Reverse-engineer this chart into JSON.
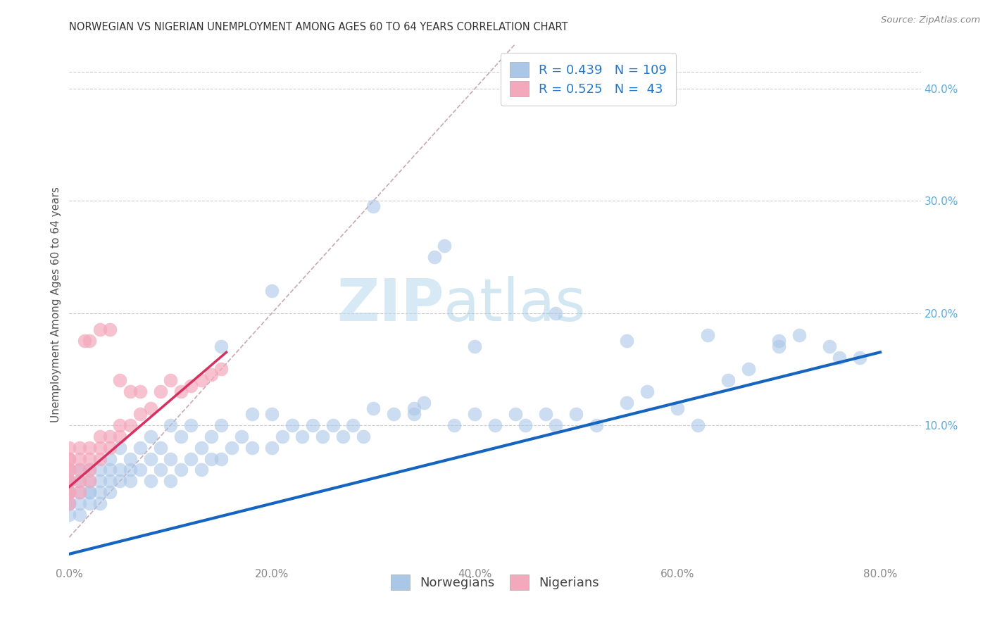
{
  "title": "NORWEGIAN VS NIGERIAN UNEMPLOYMENT AMONG AGES 60 TO 64 YEARS CORRELATION CHART",
  "source": "Source: ZipAtlas.com",
  "ylabel_label": "Unemployment Among Ages 60 to 64 years",
  "xlim": [
    0.0,
    0.84
  ],
  "ylim": [
    -0.025,
    0.44
  ],
  "watermark_zip": "ZIP",
  "watermark_atlas": "atlas",
  "legend_norwegian_R": "0.439",
  "legend_norwegian_N": "109",
  "legend_nigerian_R": "0.525",
  "legend_nigerian_N": " 43",
  "norwegian_color": "#aac7e8",
  "nigerian_color": "#f4a8bc",
  "norwegian_line_color": "#1565c0",
  "nigerian_line_color": "#d63060",
  "diagonal_color": "#c8a8b8",
  "ytick_color": "#5aabdd",
  "xtick_color": "#888888",
  "norwegian_scatter_x": [
    0.0,
    0.0,
    0.0,
    0.0,
    0.0,
    0.0,
    0.0,
    0.0,
    0.01,
    0.01,
    0.01,
    0.01,
    0.01,
    0.02,
    0.02,
    0.02,
    0.02,
    0.02,
    0.03,
    0.03,
    0.03,
    0.03,
    0.04,
    0.04,
    0.04,
    0.04,
    0.05,
    0.05,
    0.05,
    0.06,
    0.06,
    0.06,
    0.07,
    0.07,
    0.08,
    0.08,
    0.08,
    0.09,
    0.09,
    0.1,
    0.1,
    0.1,
    0.11,
    0.11,
    0.12,
    0.12,
    0.13,
    0.13,
    0.14,
    0.14,
    0.15,
    0.15,
    0.16,
    0.17,
    0.18,
    0.18,
    0.2,
    0.2,
    0.21,
    0.22,
    0.23,
    0.24,
    0.25,
    0.26,
    0.27,
    0.28,
    0.29,
    0.3,
    0.32,
    0.34,
    0.35,
    0.36,
    0.37,
    0.38,
    0.4,
    0.42,
    0.44,
    0.45,
    0.47,
    0.48,
    0.5,
    0.52,
    0.55,
    0.57,
    0.6,
    0.62,
    0.65,
    0.67,
    0.7,
    0.72,
    0.75,
    0.78,
    0.3,
    0.34,
    0.4,
    0.48,
    0.55,
    0.63,
    0.7,
    0.76,
    0.2,
    0.15
  ],
  "norwegian_scatter_y": [
    0.02,
    0.03,
    0.04,
    0.05,
    0.06,
    0.03,
    0.04,
    0.05,
    0.02,
    0.03,
    0.04,
    0.05,
    0.06,
    0.03,
    0.04,
    0.05,
    0.06,
    0.04,
    0.04,
    0.05,
    0.06,
    0.03,
    0.04,
    0.05,
    0.07,
    0.06,
    0.05,
    0.06,
    0.08,
    0.05,
    0.07,
    0.06,
    0.06,
    0.08,
    0.05,
    0.07,
    0.09,
    0.06,
    0.08,
    0.05,
    0.07,
    0.1,
    0.06,
    0.09,
    0.07,
    0.1,
    0.08,
    0.06,
    0.09,
    0.07,
    0.07,
    0.1,
    0.08,
    0.09,
    0.08,
    0.11,
    0.08,
    0.11,
    0.09,
    0.1,
    0.09,
    0.1,
    0.09,
    0.1,
    0.09,
    0.1,
    0.09,
    0.295,
    0.11,
    0.11,
    0.12,
    0.25,
    0.26,
    0.1,
    0.11,
    0.1,
    0.11,
    0.1,
    0.11,
    0.1,
    0.11,
    0.1,
    0.12,
    0.13,
    0.115,
    0.1,
    0.14,
    0.15,
    0.175,
    0.18,
    0.17,
    0.16,
    0.115,
    0.115,
    0.17,
    0.2,
    0.175,
    0.18,
    0.17,
    0.16,
    0.22,
    0.17
  ],
  "nigerian_scatter_x": [
    0.0,
    0.0,
    0.0,
    0.0,
    0.0,
    0.0,
    0.0,
    0.0,
    0.0,
    0.0,
    0.01,
    0.01,
    0.01,
    0.01,
    0.01,
    0.02,
    0.02,
    0.02,
    0.02,
    0.03,
    0.03,
    0.03,
    0.03,
    0.04,
    0.04,
    0.04,
    0.05,
    0.05,
    0.05,
    0.06,
    0.06,
    0.07,
    0.07,
    0.08,
    0.09,
    0.1,
    0.11,
    0.12,
    0.13,
    0.14,
    0.15,
    0.02,
    0.015
  ],
  "nigerian_scatter_y": [
    0.03,
    0.04,
    0.05,
    0.06,
    0.07,
    0.05,
    0.06,
    0.07,
    0.08,
    0.04,
    0.04,
    0.05,
    0.06,
    0.07,
    0.08,
    0.05,
    0.06,
    0.07,
    0.08,
    0.07,
    0.08,
    0.09,
    0.185,
    0.08,
    0.09,
    0.185,
    0.09,
    0.1,
    0.14,
    0.1,
    0.13,
    0.11,
    0.13,
    0.115,
    0.13,
    0.14,
    0.13,
    0.135,
    0.14,
    0.145,
    0.15,
    0.175,
    0.175
  ],
  "norwegian_line_x": [
    0.0,
    0.8
  ],
  "norwegian_line_y": [
    -0.015,
    0.165
  ],
  "nigerian_line_x": [
    0.0,
    0.155
  ],
  "nigerian_line_y": [
    0.045,
    0.165
  ],
  "diagonal_line_x": [
    0.0,
    0.44
  ],
  "diagonal_line_y": [
    0.0,
    0.44
  ],
  "ytick_vals": [
    0.1,
    0.2,
    0.3,
    0.4
  ],
  "ytick_labels": [
    "10.0%",
    "20.0%",
    "30.0%",
    "40.0%"
  ],
  "xtick_vals": [
    0.0,
    0.2,
    0.4,
    0.6,
    0.8
  ],
  "xtick_labels": [
    "0.0%",
    "20.0%",
    "40.0%",
    "60.0%",
    "80.0%"
  ]
}
